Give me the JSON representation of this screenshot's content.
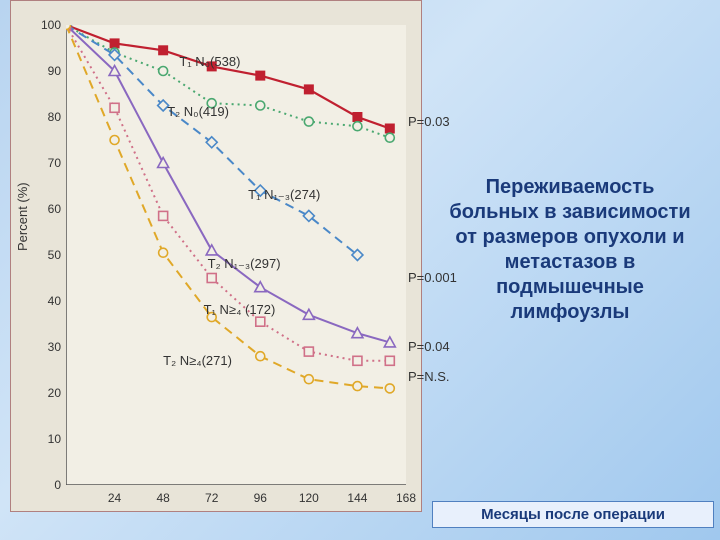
{
  "chart": {
    "type": "line",
    "y_axis_label": "Percent (%)",
    "ylim": [
      0,
      100
    ],
    "ytick_step": 10,
    "xlim": [
      0,
      168
    ],
    "xticks": [
      24,
      48,
      72,
      96,
      120,
      144,
      168
    ],
    "plot_bg": "#f2efe5",
    "panel_bg": "#e8e4d8",
    "axis_color": "#555555",
    "tick_font_size": 12,
    "label_font_size": 13,
    "series": [
      {
        "id": "t1n0",
        "label": "T₁ N₀(538)",
        "label_xy": [
          56,
          92
        ],
        "color": "#c02030",
        "marker": "square-filled",
        "dash": "solid",
        "line_width": 2.2,
        "data": [
          [
            0,
            100
          ],
          [
            24,
            96
          ],
          [
            48,
            94.5
          ],
          [
            72,
            91
          ],
          [
            96,
            89
          ],
          [
            120,
            86
          ],
          [
            144,
            80
          ],
          [
            160,
            77.5
          ]
        ]
      },
      {
        "id": "t2n0",
        "label": "T₂ N₀(419)",
        "label_xy": [
          50,
          81
        ],
        "color": "#4aa870",
        "marker": "circle-open",
        "dash": "dot",
        "line_width": 2,
        "data": [
          [
            0,
            100
          ],
          [
            24,
            94
          ],
          [
            48,
            90
          ],
          [
            72,
            83
          ],
          [
            96,
            82.5
          ],
          [
            120,
            79
          ],
          [
            144,
            78
          ],
          [
            160,
            75.5
          ]
        ]
      },
      {
        "id": "t1n13",
        "label": "T₁ N₁₋₃(274)",
        "label_xy": [
          90,
          63
        ],
        "color": "#4a88c8",
        "marker": "diamond-open",
        "dash": "dash",
        "line_width": 2,
        "data": [
          [
            0,
            100
          ],
          [
            24,
            93.5
          ],
          [
            48,
            82.5
          ],
          [
            72,
            74.5
          ],
          [
            96,
            64
          ],
          [
            120,
            58.5
          ],
          [
            144,
            50
          ]
        ]
      },
      {
        "id": "t2n13",
        "label": "T₂ N₁₋₃(297)",
        "label_xy": [
          70,
          48
        ],
        "color": "#8a68c0",
        "marker": "triangle-open",
        "dash": "solid",
        "line_width": 2,
        "data": [
          [
            0,
            100
          ],
          [
            24,
            90
          ],
          [
            48,
            70
          ],
          [
            72,
            51
          ],
          [
            96,
            43
          ],
          [
            120,
            37
          ],
          [
            144,
            33
          ],
          [
            160,
            31
          ]
        ]
      },
      {
        "id": "t1n4",
        "label": "T₁ N≥₄ (172)",
        "label_xy": [
          68,
          38
        ],
        "color": "#d07088",
        "marker": "square-open",
        "dash": "dot",
        "line_width": 2,
        "data": [
          [
            0,
            100
          ],
          [
            24,
            82
          ],
          [
            48,
            58.5
          ],
          [
            72,
            45
          ],
          [
            96,
            35.5
          ],
          [
            120,
            29
          ],
          [
            144,
            27
          ],
          [
            160,
            27
          ]
        ]
      },
      {
        "id": "t2n4",
        "label": "T₂ N≥₄(271)",
        "label_xy": [
          48,
          27
        ],
        "color": "#e0a828",
        "marker": "circle-open",
        "dash": "dash",
        "line_width": 2,
        "data": [
          [
            0,
            100
          ],
          [
            24,
            75
          ],
          [
            48,
            50.5
          ],
          [
            72,
            36.5
          ],
          [
            96,
            28
          ],
          [
            120,
            23
          ],
          [
            144,
            21.5
          ],
          [
            160,
            21
          ]
        ]
      }
    ],
    "p_values": [
      {
        "text": "P=0.03",
        "xy": [
          172,
          79
        ]
      },
      {
        "text": "P=0.001",
        "xy": [
          170,
          45
        ]
      },
      {
        "text": "P=0.04",
        "xy": [
          172,
          30
        ]
      },
      {
        "text": "P=N.S.",
        "xy": [
          172,
          23.5
        ]
      }
    ]
  },
  "side_text": "Переживаемость больных в зависимости от размеров опухоли и метастазов в подмышечные лимфоузлы",
  "caption": "Месяцы после операции"
}
